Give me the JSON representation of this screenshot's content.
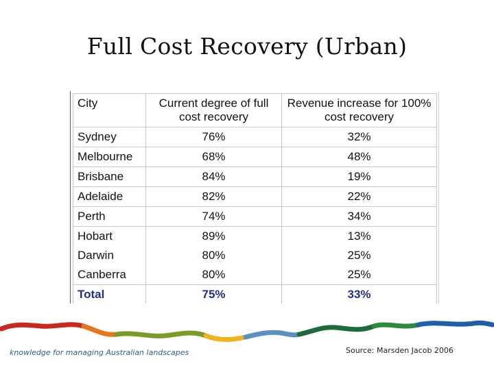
{
  "slide": {
    "title": "Full Cost Recovery (Urban)",
    "tagline": "knowledge for managing Australian landscapes",
    "source": "Source: Marsden Jacob 2006"
  },
  "table": {
    "headers": [
      "City",
      "Current degree of full cost recovery",
      "Revenue increase for 100% cost recovery"
    ],
    "rows": [
      {
        "city": "Sydney",
        "current": "76%",
        "increase": "32%"
      },
      {
        "city": "Melbourne",
        "current": "68%",
        "increase": "48%"
      },
      {
        "city": "Brisbane",
        "current": "84%",
        "increase": "19%"
      },
      {
        "city": "Adelaide",
        "current": "82%",
        "increase": "22%"
      },
      {
        "city": "Perth",
        "current": "74%",
        "increase": "34%"
      },
      {
        "city": "Hobart",
        "current": "89%",
        "increase": "13%"
      },
      {
        "city": "Darwin",
        "current": "80%",
        "increase": "25%"
      },
      {
        "city": "Canberra",
        "current": "80%",
        "increase": "25%"
      }
    ],
    "total": {
      "city": "Total",
      "current": "75%",
      "increase": "33%"
    }
  },
  "colors": {
    "total_text": "#1f2f8a",
    "tagline_text": "#2f5d8a",
    "wave": [
      "#c8281e",
      "#e8751a",
      "#7a9a2a",
      "#f2b21c",
      "#5b8fc4",
      "#1d6b3a",
      "#2c8a3c",
      "#1f5fa8"
    ]
  }
}
